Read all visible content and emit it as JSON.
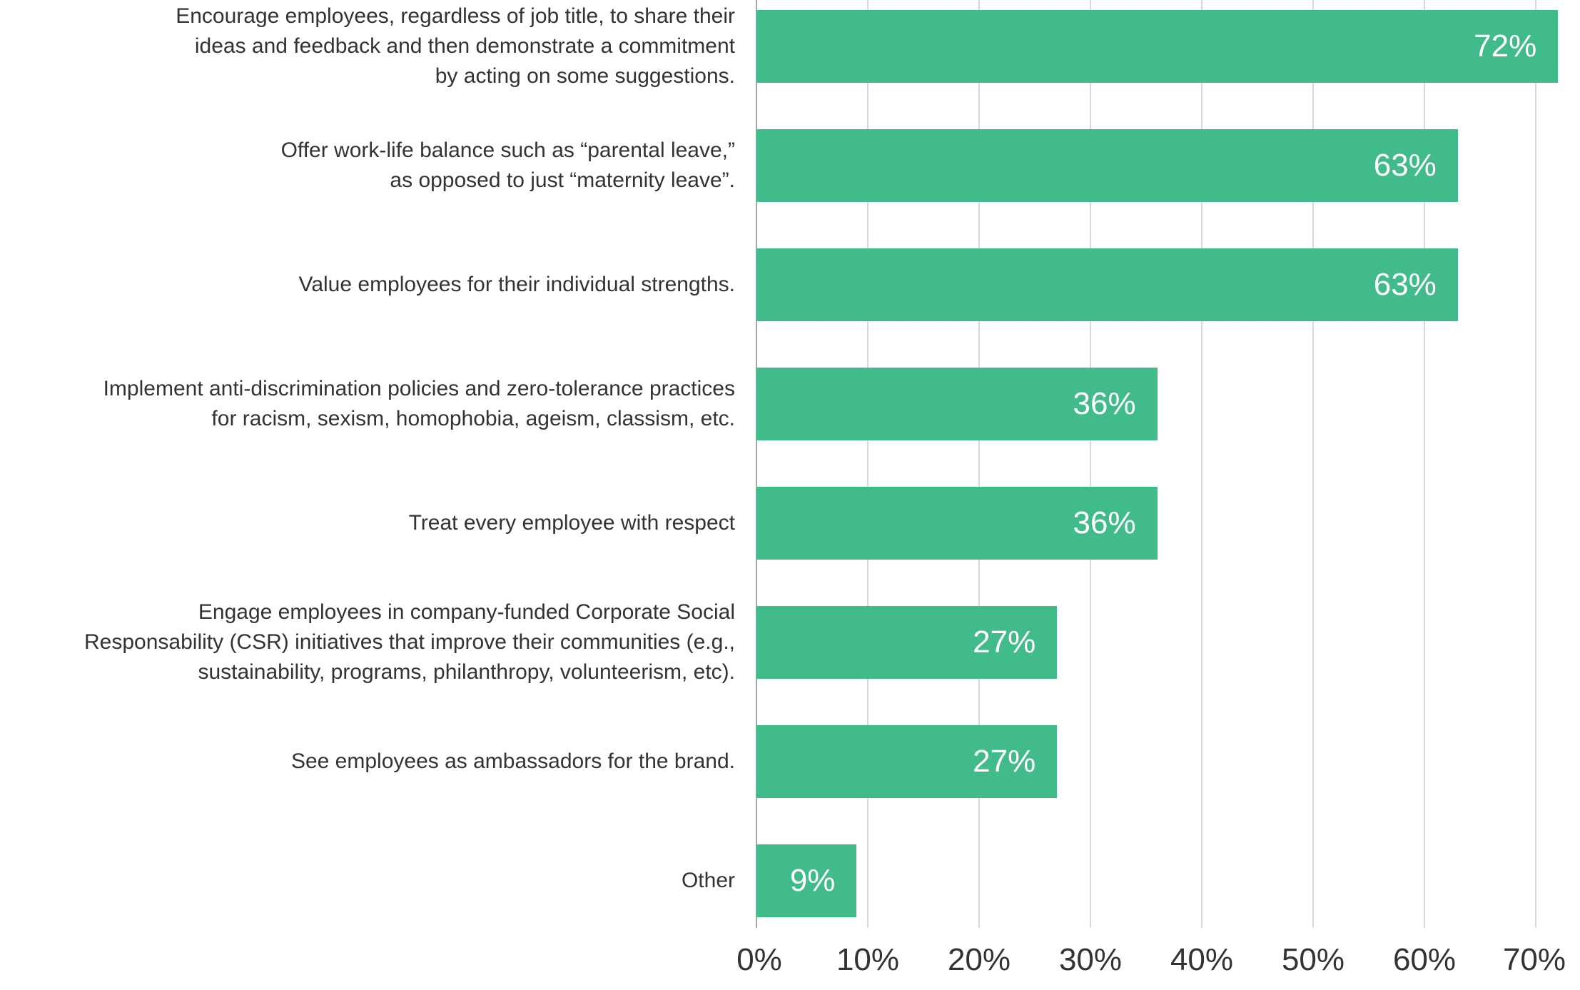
{
  "chart_data": {
    "type": "bar",
    "orientation": "horizontal",
    "title": "",
    "xlabel": "",
    "ylabel": "",
    "xlim": [
      0,
      70
    ],
    "grid": true,
    "bar_color": "#41bb8a",
    "categories": [
      "Encourage employees, regardless of job title, to share their\nideas and feedback and then demonstrate a commitment\nby acting on some suggestions.",
      "Offer work-life balance such as “parental leave,”\nas opposed to just “maternity leave”.",
      "Value employees for their individual strengths.",
      "Implement anti-discrimination policies and zero-tolerance practices\nfor racism, sexism, homophobia, ageism, classism, etc.",
      "Treat every employee with respect",
      "Engage employees in company-funded Corporate Social\nResponsability (CSR)  initiatives that improve their communities (e.g.,\nsustainability, programs, philanthropy, volunteerism, etc).",
      "See employees as ambassadors for the brand.",
      "Other"
    ],
    "values": [
      72,
      63,
      63,
      36,
      36,
      27,
      27,
      9
    ],
    "value_labels": [
      "72%",
      "63%",
      "63%",
      "36%",
      "36%",
      "27%",
      "27%",
      "9%"
    ],
    "x_ticks": [
      0,
      10,
      20,
      30,
      40,
      50,
      60,
      70
    ],
    "x_tick_labels": [
      "0%",
      "10%",
      "20%",
      "30%",
      "40%",
      "50%",
      "60%",
      "70%"
    ]
  }
}
